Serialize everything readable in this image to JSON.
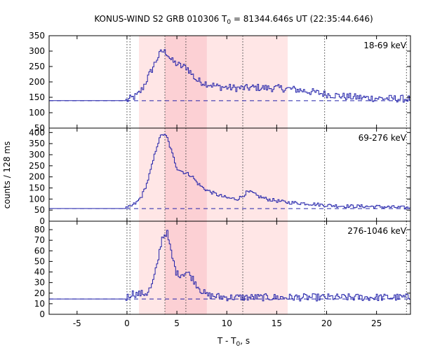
{
  "chart_data": {
    "type": "line",
    "title": "KONUS-WIND S2 GRB 010306 T",
    "title_sub": "0",
    "title_rest": " = 81344.646s UT (22:35:44.646)",
    "xlabel": "T - T",
    "xlabel_sub": "0",
    "xlabel_rest": ", s",
    "ylabel": "counts / 128 ms",
    "xlim": [
      -7.8,
      28.4
    ],
    "x_ticks": [
      -5,
      0,
      5,
      10,
      15,
      20,
      25
    ],
    "line_color": "#2222aa",
    "shade_light": "#ffe6e6",
    "shade_dark": "#fcd0d4",
    "shaded_intervals": [
      {
        "x0": 1.2,
        "x1": 16.1,
        "shade": "light"
      },
      {
        "x0": 3.8,
        "x1": 8.0,
        "shade": "dark"
      }
    ],
    "vertical_dotted_lines": [
      0.0,
      0.3,
      3.8,
      5.9,
      11.6,
      19.8,
      28.0
    ],
    "panels": [
      {
        "label": "18-69 keV",
        "ylim": [
          50,
          350
        ],
        "y_ticks": [
          50,
          100,
          150,
          200,
          250,
          300,
          350
        ],
        "background": 139,
        "profile": [
          [
            -7.8,
            139
          ],
          [
            -0.3,
            139
          ],
          [
            0,
            140
          ],
          [
            0.5,
            148
          ],
          [
            1.0,
            155
          ],
          [
            1.5,
            175
          ],
          [
            2.0,
            208
          ],
          [
            2.5,
            240
          ],
          [
            3.0,
            275
          ],
          [
            3.5,
            300
          ],
          [
            4.0,
            295
          ],
          [
            4.5,
            268
          ],
          [
            5.0,
            258
          ],
          [
            5.5,
            250
          ],
          [
            6.0,
            248
          ],
          [
            6.5,
            225
          ],
          [
            7.0,
            205
          ],
          [
            8.0,
            195
          ],
          [
            9.0,
            185
          ],
          [
            10.0,
            182
          ],
          [
            11.0,
            180
          ],
          [
            12.0,
            180
          ],
          [
            13.0,
            182
          ],
          [
            14.0,
            180
          ],
          [
            15.0,
            180
          ],
          [
            16.0,
            178
          ],
          [
            17.0,
            175
          ],
          [
            18.0,
            170
          ],
          [
            19.0,
            165
          ],
          [
            20.0,
            160
          ],
          [
            22.0,
            152
          ],
          [
            24.0,
            148
          ],
          [
            26.0,
            146
          ],
          [
            28.4,
            145
          ]
        ],
        "noise": 12
      },
      {
        "label": "69-276 keV",
        "ylim": [
          0,
          420
        ],
        "y_ticks": [
          0,
          50,
          100,
          150,
          200,
          250,
          300,
          350,
          400
        ],
        "background": 57,
        "profile": [
          [
            -7.8,
            57
          ],
          [
            -0.3,
            57
          ],
          [
            0,
            58
          ],
          [
            0.5,
            70
          ],
          [
            1.0,
            85
          ],
          [
            1.5,
            115
          ],
          [
            2.0,
            170
          ],
          [
            2.5,
            250
          ],
          [
            3.0,
            340
          ],
          [
            3.5,
            395
          ],
          [
            4.0,
            380
          ],
          [
            4.5,
            310
          ],
          [
            5.0,
            240
          ],
          [
            5.5,
            225
          ],
          [
            6.0,
            215
          ],
          [
            6.5,
            205
          ],
          [
            7.0,
            175
          ],
          [
            7.5,
            155
          ],
          [
            8.0,
            140
          ],
          [
            9.0,
            120
          ],
          [
            10.0,
            105
          ],
          [
            11.0,
            100
          ],
          [
            11.5,
            110
          ],
          [
            12.0,
            130
          ],
          [
            12.5,
            130
          ],
          [
            13.0,
            115
          ],
          [
            14.0,
            100
          ],
          [
            15.0,
            92
          ],
          [
            16.0,
            85
          ],
          [
            18.0,
            80
          ],
          [
            20.0,
            72
          ],
          [
            22.0,
            68
          ],
          [
            25.0,
            66
          ],
          [
            28.4,
            60
          ]
        ],
        "noise": 8
      },
      {
        "label": "276-1046 keV",
        "ylim": [
          0,
          88
        ],
        "y_ticks": [
          0,
          10,
          20,
          30,
          40,
          50,
          60,
          70,
          80
        ],
        "background": 14.5,
        "profile": [
          [
            -7.8,
            14
          ],
          [
            -0.3,
            14
          ],
          [
            0,
            16
          ],
          [
            0.5,
            20
          ],
          [
            1.0,
            19
          ],
          [
            2.0,
            20
          ],
          [
            2.5,
            27
          ],
          [
            3.0,
            45
          ],
          [
            3.5,
            72
          ],
          [
            4.0,
            78
          ],
          [
            4.5,
            55
          ],
          [
            5.0,
            38
          ],
          [
            5.5,
            38
          ],
          [
            6.0,
            40
          ],
          [
            6.5,
            35
          ],
          [
            7.0,
            28
          ],
          [
            7.5,
            22
          ],
          [
            8.0,
            18
          ],
          [
            10.0,
            16
          ],
          [
            15.0,
            16
          ],
          [
            20.0,
            16
          ],
          [
            28.4,
            16
          ]
        ],
        "noise": 3.5
      }
    ]
  }
}
